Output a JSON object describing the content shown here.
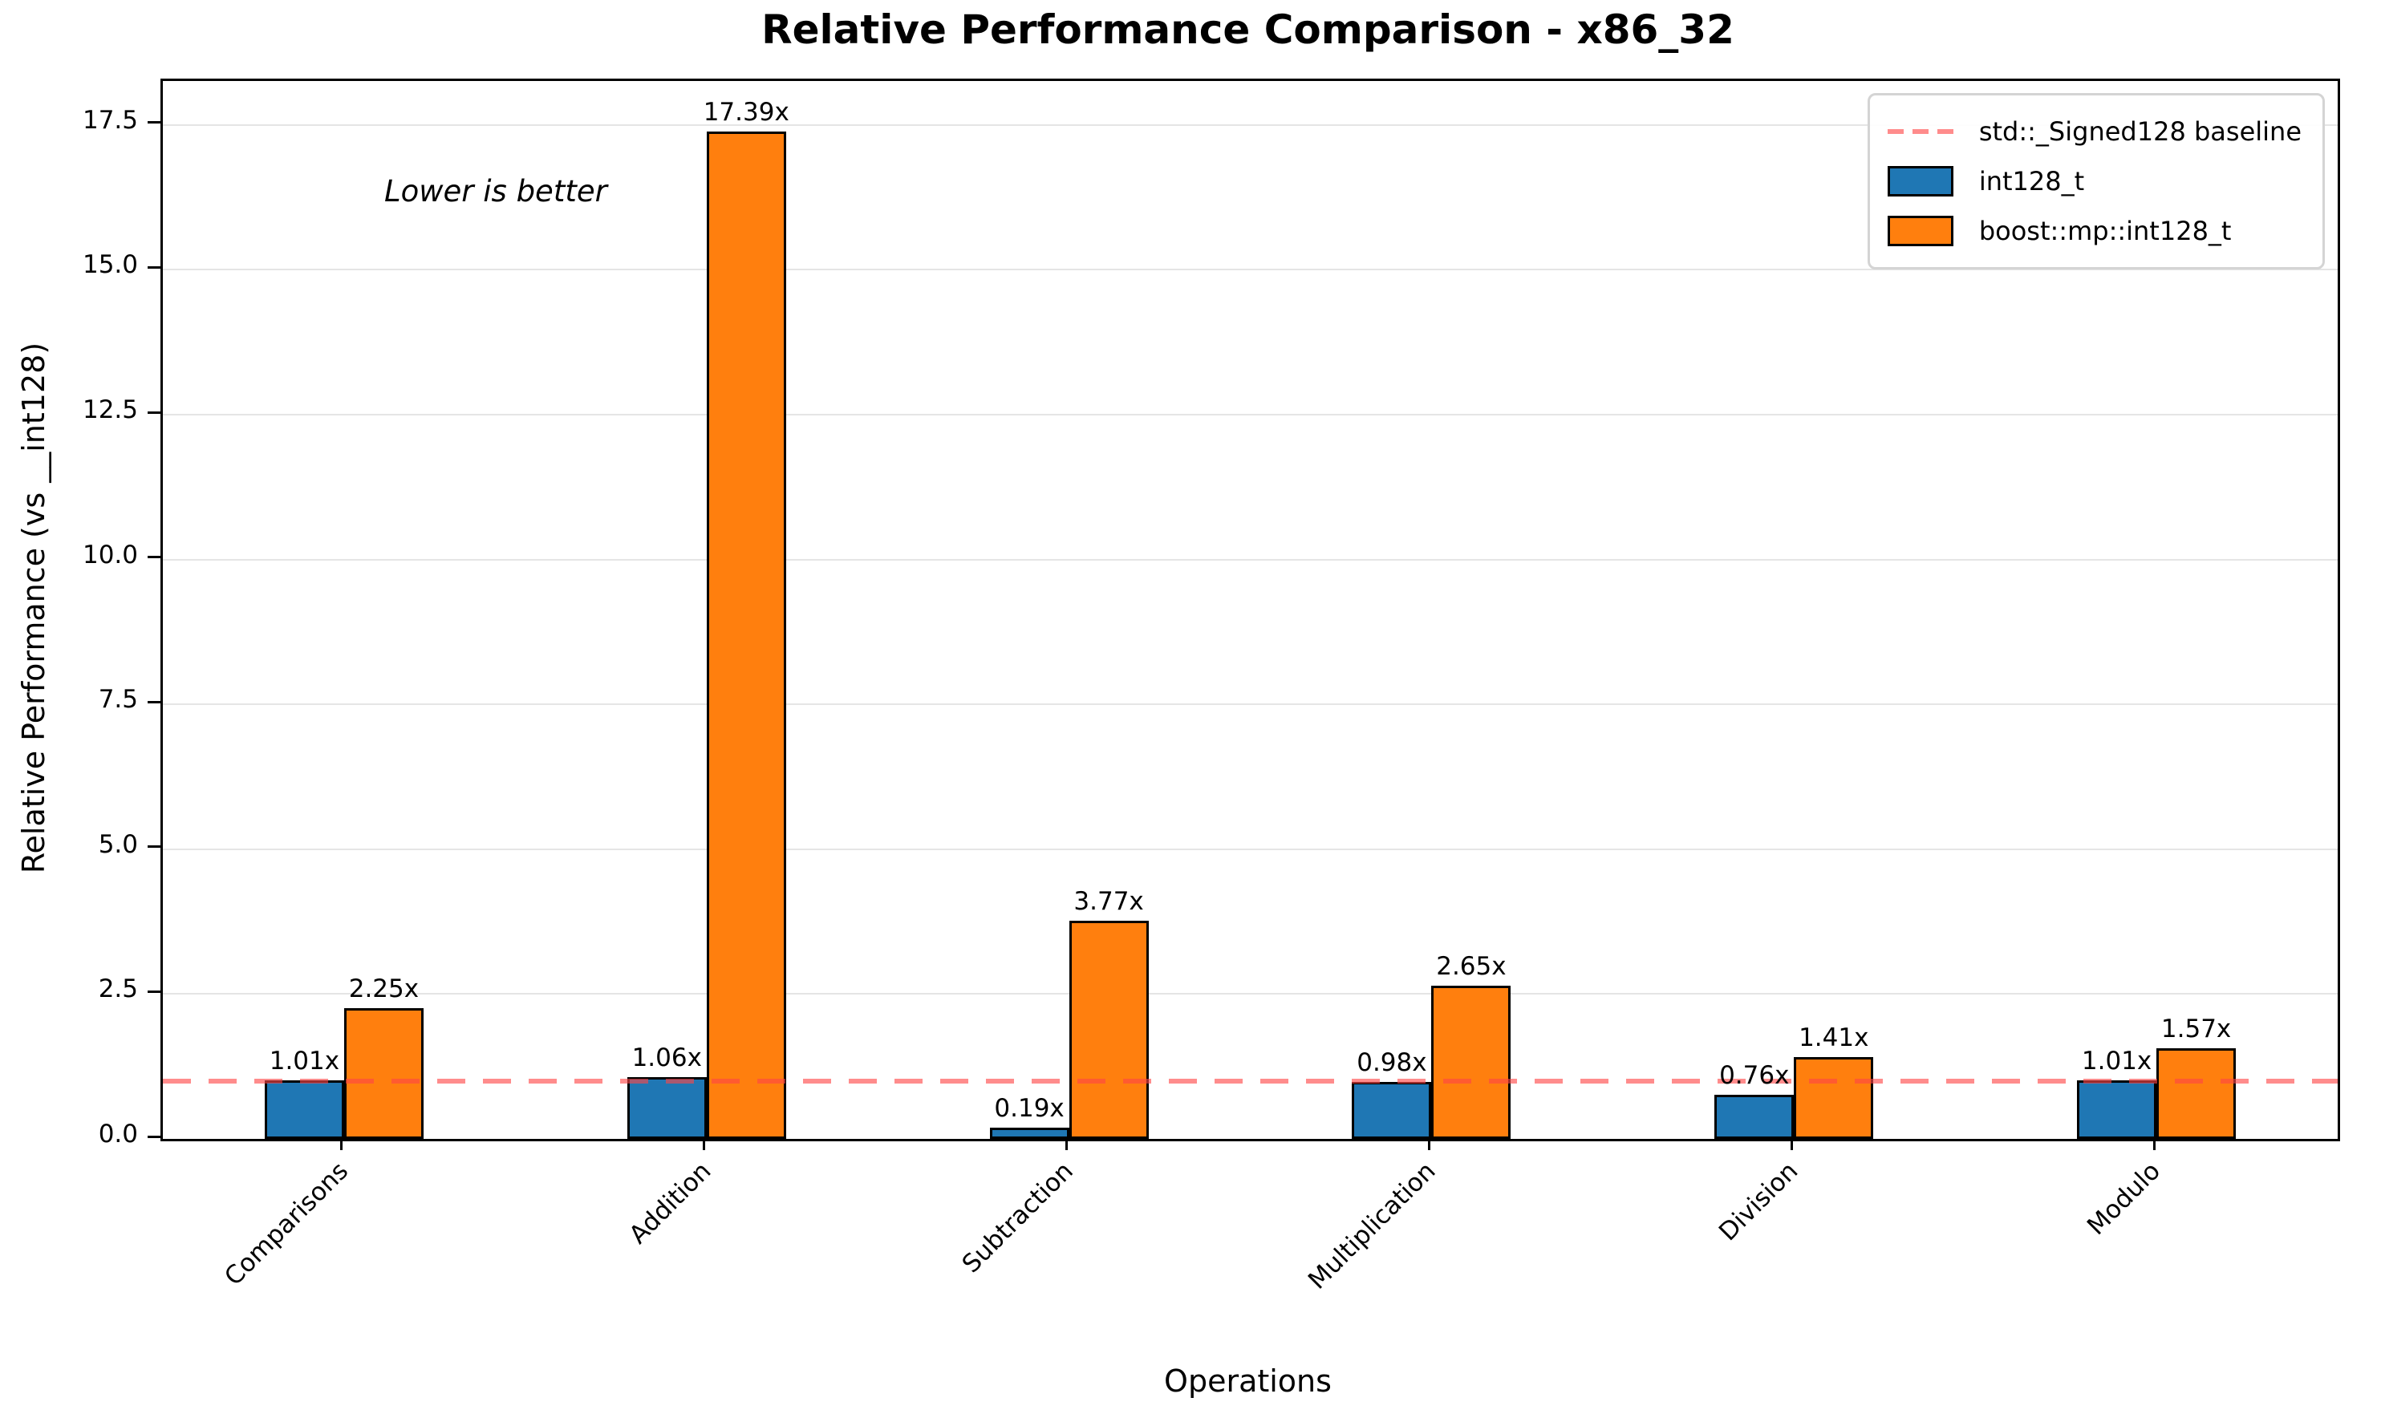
{
  "chart_data": {
    "type": "bar",
    "title": "Relative Performance Comparison - x86_32",
    "xlabel": "Operations",
    "ylabel": "Relative Performance (vs __int128)",
    "annotation": "Lower is better",
    "categories": [
      "Comparisons",
      "Addition",
      "Subtraction",
      "Multiplication",
      "Division",
      "Modulo"
    ],
    "series": [
      {
        "name": "int128_t",
        "color": "#1f77b4",
        "values": [
          1.01,
          1.06,
          0.19,
          0.98,
          0.76,
          1.01
        ],
        "labels": [
          "1.01x",
          "1.06x",
          "0.19x",
          "0.98x",
          "0.76x",
          "1.01x"
        ]
      },
      {
        "name": "boost::mp::int128_t",
        "color": "#ff7f0e",
        "values": [
          2.25,
          17.39,
          3.77,
          2.65,
          1.41,
          1.57
        ],
        "labels": [
          "2.25x",
          "17.39x",
          "3.77x",
          "2.65x",
          "1.41x",
          "1.57x"
        ]
      }
    ],
    "baseline": {
      "label": "std::_Signed128 baseline",
      "value": 1.0,
      "color": "#ff4545",
      "style": "dashed"
    },
    "yticks": [
      0.0,
      2.5,
      5.0,
      7.5,
      10.0,
      12.5,
      15.0,
      17.5
    ],
    "ytick_labels": [
      "0.0",
      "2.5",
      "5.0",
      "7.5",
      "10.0",
      "12.5",
      "15.0",
      "17.5"
    ],
    "ylim": [
      0,
      18.26
    ],
    "grid": "horizontal",
    "grid_color": "#e5e5e5",
    "legend_position": "upper right",
    "legend": [
      "std::_Signed128 baseline",
      "int128_t",
      "boost::mp::int128_t"
    ]
  }
}
